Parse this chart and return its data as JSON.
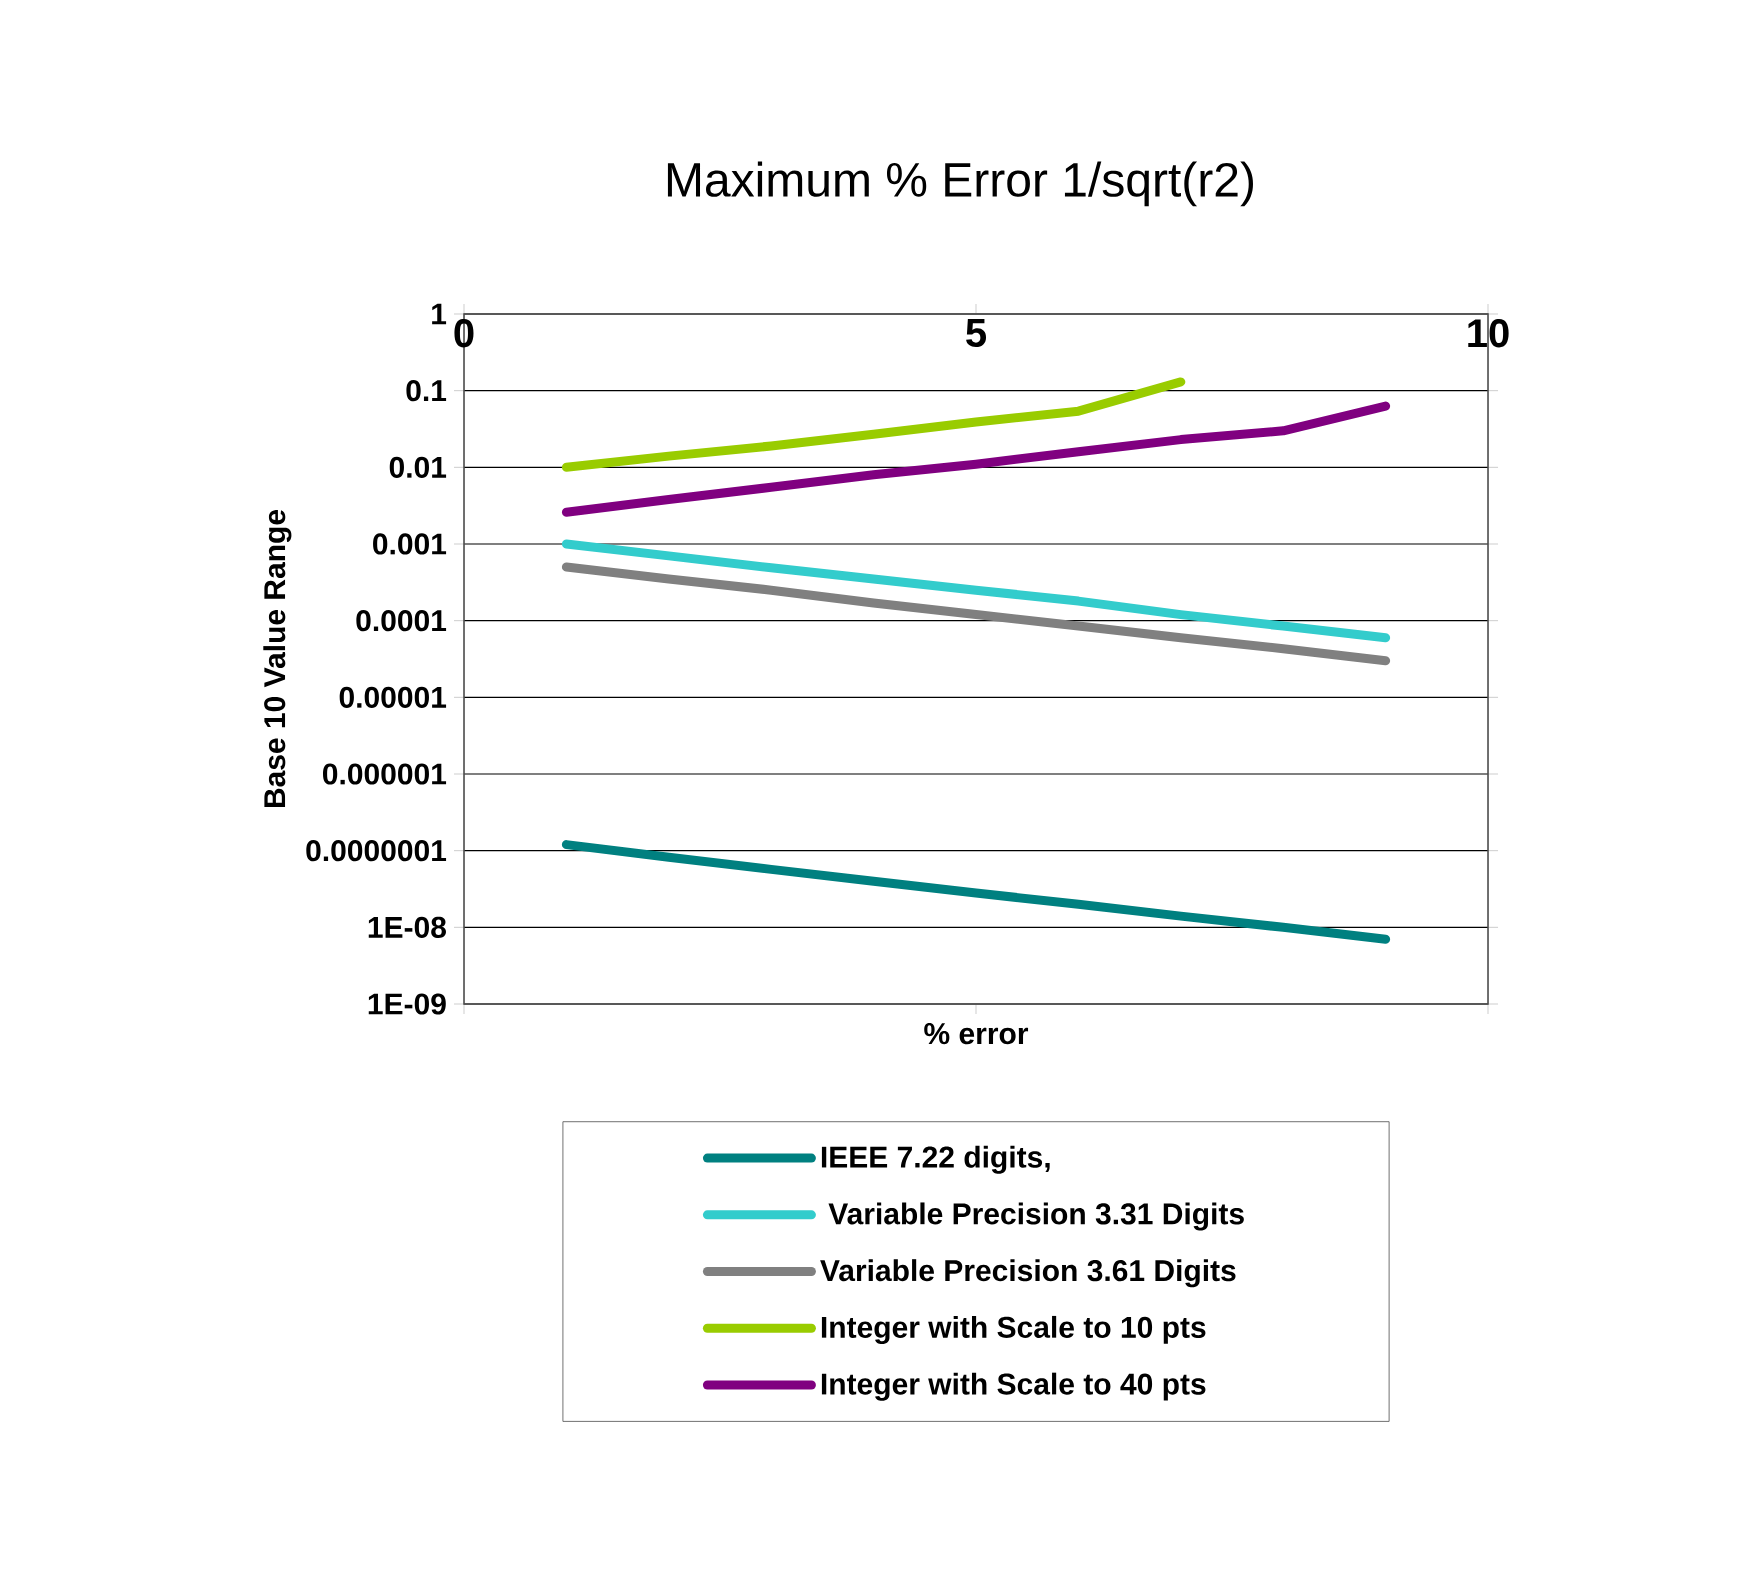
{
  "chart_data": {
    "type": "line",
    "title": "Maximum % Error 1/sqrt(r2)",
    "xlabel": "% error",
    "ylabel": "Base 10 Value Range",
    "log": "y",
    "grid": "y",
    "legend": "bottom",
    "marker": "none",
    "line_style": "solid",
    "xlim": [
      0,
      10
    ],
    "xticks": [
      0,
      5,
      10
    ],
    "ylim": [
      1e-09,
      1
    ],
    "yticks": [
      {
        "value": 1,
        "label": "1"
      },
      {
        "value": 0.1,
        "label": "0.1"
      },
      {
        "value": 0.01,
        "label": "0.01"
      },
      {
        "value": 0.001,
        "label": "0.001"
      },
      {
        "value": 0.0001,
        "label": "0.0001"
      },
      {
        "value": 1e-05,
        "label": "0.00001"
      },
      {
        "value": 1e-06,
        "label": "0.000001"
      },
      {
        "value": 1e-07,
        "label": "0.0000001"
      },
      {
        "value": 1e-08,
        "label": "1E-08"
      },
      {
        "value": 1e-09,
        "label": "1E-09"
      }
    ],
    "x": [
      1,
      2,
      3,
      4,
      5,
      6,
      7,
      8,
      9
    ],
    "series": [
      {
        "name": "IEEE   7.22 digits,",
        "color": "#008080",
        "values": [
          1.2e-07,
          8.2e-08,
          5.7e-08,
          4e-08,
          2.8e-08,
          2e-08,
          1.4e-08,
          1e-08,
          7e-09
        ]
      },
      {
        "name": " Variable Precision 3.31 Digits",
        "color": "#33cccc",
        "values": [
          0.001,
          0.0007,
          0.00049,
          0.00035,
          0.00025,
          0.00018,
          0.00012,
          8.5e-05,
          6e-05
        ]
      },
      {
        "name": "Variable Precision 3.61 Digits",
        "color": "#808080",
        "values": [
          0.0005,
          0.00035,
          0.00025,
          0.00017,
          0.00012,
          8.5e-05,
          6e-05,
          4.3e-05,
          3e-05
        ]
      },
      {
        "name": "Integer with Scale to 10 pts",
        "color": "#99cc00",
        "x": [
          1,
          2,
          3,
          4,
          5,
          6,
          7
        ],
        "values": [
          0.01,
          0.014,
          0.019,
          0.027,
          0.039,
          0.054,
          0.13
        ]
      },
      {
        "name": "Integer with Scale to 40 pts",
        "color": "#800080",
        "values": [
          0.0026,
          0.0038,
          0.0055,
          0.008,
          0.011,
          0.016,
          0.023,
          0.03,
          0.063
        ]
      }
    ]
  }
}
